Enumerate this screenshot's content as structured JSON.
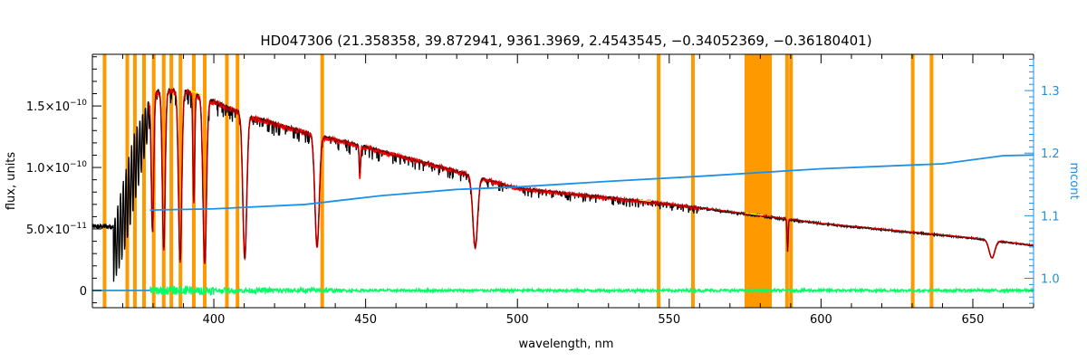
{
  "chart_data": {
    "type": "line",
    "title": "HD047306   (21.358358, 39.872941, 9361.3969, 2.4543545, −0.34052369, −0.36180401)",
    "xlabel": "wavelength, nm",
    "ylabel": "flux, units",
    "y2label": "mcont",
    "xlim": [
      360,
      670
    ],
    "ylim": [
      -1.4e-11,
      1.92e-10
    ],
    "y2lim": [
      0.953,
      1.358
    ],
    "x_ticks": [
      {
        "v": 400,
        "label": "400"
      },
      {
        "v": 450,
        "label": "450"
      },
      {
        "v": 500,
        "label": "500"
      },
      {
        "v": 550,
        "label": "550"
      },
      {
        "v": 600,
        "label": "600"
      },
      {
        "v": 650,
        "label": "650"
      }
    ],
    "y_ticks": [
      {
        "v": 0,
        "label": "0",
        "exp": ""
      },
      {
        "v": 5e-11,
        "label": "5.0×10",
        "exp": "−11"
      },
      {
        "v": 1e-10,
        "label": "1.0×10",
        "exp": "−10"
      },
      {
        "v": 1.5e-10,
        "label": "1.5×10",
        "exp": "−10"
      }
    ],
    "y2_ticks": [
      {
        "v": 1.0,
        "label": "1.0"
      },
      {
        "v": 1.1,
        "label": "1.1"
      },
      {
        "v": 1.2,
        "label": "1.2"
      },
      {
        "v": 1.3,
        "label": "1.3"
      }
    ],
    "colors": {
      "observed": "#000000",
      "model": "#ff0000",
      "residual": "#00ff66",
      "continuum": "#1e8fe6",
      "mask": "#ff9900",
      "highlight": "#ffff00"
    },
    "mask_lines": [
      364,
      371.5,
      374,
      377,
      380.2,
      383.5,
      386,
      389,
      393.4,
      397,
      404.3,
      407.8,
      435.7,
      546.5,
      557.8,
      588.8,
      590.1,
      630.2,
      636.4
    ],
    "mask_band": [
      574.8,
      583.8
    ],
    "balmer_lines": [
      {
        "x": 656.3,
        "depth": 0.35,
        "w": 1.3
      },
      {
        "x": 486.1,
        "depth": 0.62,
        "w": 1.1
      },
      {
        "x": 434.0,
        "depth": 0.72,
        "w": 1.0
      },
      {
        "x": 410.2,
        "depth": 0.82,
        "w": 0.9
      },
      {
        "x": 397.0,
        "depth": 0.86,
        "w": 0.8
      },
      {
        "x": 388.9,
        "depth": 0.86,
        "w": 0.75
      },
      {
        "x": 383.5,
        "depth": 0.8,
        "w": 0.65
      },
      {
        "x": 379.8,
        "depth": 0.7,
        "w": 0.55
      }
    ],
    "extra_lines": [
      {
        "x": 393.4,
        "depth": 0.55,
        "w": 0.4
      },
      {
        "x": 448.1,
        "depth": 0.22,
        "w": 0.3
      },
      {
        "x": 589.0,
        "depth": 0.45,
        "w": 0.25
      }
    ],
    "continuum_points": [
      {
        "x": 360,
        "y": 5.2e-11
      },
      {
        "x": 367,
        "y": 5.5e-11
      },
      {
        "x": 374,
        "y": 1.3e-10
      },
      {
        "x": 380,
        "y": 1.63e-10
      },
      {
        "x": 390,
        "y": 1.65e-10
      },
      {
        "x": 400,
        "y": 1.55e-10
      },
      {
        "x": 412,
        "y": 1.43e-10
      },
      {
        "x": 430,
        "y": 1.3e-10
      },
      {
        "x": 450,
        "y": 1.18e-10
      },
      {
        "x": 480,
        "y": 9.8e-11
      },
      {
        "x": 500,
        "y": 8.4e-11
      },
      {
        "x": 550,
        "y": 7.1e-11
      },
      {
        "x": 600,
        "y": 5.5e-11
      },
      {
        "x": 650,
        "y": 4.3e-11
      },
      {
        "x": 670,
        "y": 3.7e-11
      }
    ],
    "mcont_points": [
      {
        "x": 379,
        "y": 1.109
      },
      {
        "x": 400,
        "y": 1.111
      },
      {
        "x": 430,
        "y": 1.118
      },
      {
        "x": 455,
        "y": 1.132
      },
      {
        "x": 480,
        "y": 1.142
      },
      {
        "x": 500,
        "y": 1.146
      },
      {
        "x": 530,
        "y": 1.155
      },
      {
        "x": 560,
        "y": 1.163
      },
      {
        "x": 600,
        "y": 1.175
      },
      {
        "x": 640,
        "y": 1.183
      },
      {
        "x": 660,
        "y": 1.196
      },
      {
        "x": 670,
        "y": 1.197
      }
    ],
    "series": [
      {
        "role": "observed"
      },
      {
        "role": "model"
      },
      {
        "role": "residual"
      },
      {
        "role": "continuum"
      }
    ],
    "grid": false,
    "legend": "none"
  }
}
